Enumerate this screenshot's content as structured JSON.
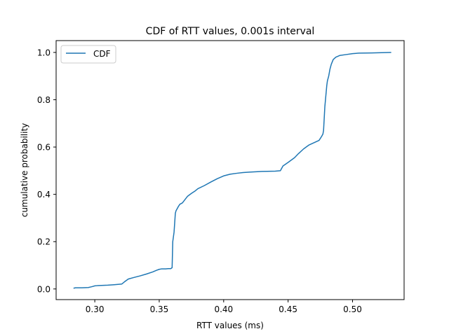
{
  "chart_data": {
    "type": "line",
    "title": "CDF of RTT values, 0.001s interval",
    "xlabel": "RTT values (ms)",
    "ylabel": "cumulative probability",
    "xlim": [
      0.27,
      0.54
    ],
    "ylim": [
      -0.045,
      1.05
    ],
    "xticks": [
      {
        "value": 0.3,
        "label": "0.30"
      },
      {
        "value": 0.35,
        "label": "0.35"
      },
      {
        "value": 0.4,
        "label": "0.40"
      },
      {
        "value": 0.45,
        "label": "0.45"
      },
      {
        "value": 0.5,
        "label": "0.50"
      }
    ],
    "yticks": [
      {
        "value": 0.0,
        "label": "0.0"
      },
      {
        "value": 0.2,
        "label": "0.2"
      },
      {
        "value": 0.4,
        "label": "0.4"
      },
      {
        "value": 0.6,
        "label": "0.6"
      },
      {
        "value": 0.8,
        "label": "0.8"
      },
      {
        "value": 1.0,
        "label": "1.0"
      }
    ],
    "grid": false,
    "legend": {
      "placement": "top-left"
    },
    "series": [
      {
        "name": "CDF",
        "color": "#1f77b4",
        "x": [
          0.2835,
          0.285,
          0.29,
          0.295,
          0.298,
          0.3,
          0.302,
          0.31,
          0.315,
          0.321,
          0.323,
          0.326,
          0.33,
          0.335,
          0.34,
          0.345,
          0.348,
          0.35,
          0.352,
          0.355,
          0.357,
          0.359,
          0.36,
          0.3605,
          0.3615,
          0.362,
          0.3625,
          0.363,
          0.364,
          0.365,
          0.366,
          0.368,
          0.37,
          0.372,
          0.375,
          0.378,
          0.38,
          0.385,
          0.39,
          0.395,
          0.4,
          0.405,
          0.41,
          0.415,
          0.42,
          0.43,
          0.44,
          0.444,
          0.446,
          0.45,
          0.455,
          0.458,
          0.462,
          0.466,
          0.47,
          0.474,
          0.476,
          0.477,
          0.4775,
          0.4785,
          0.479,
          0.48,
          0.4805,
          0.4815,
          0.4825,
          0.4835,
          0.485,
          0.487,
          0.49,
          0.495,
          0.5,
          0.505,
          0.515,
          0.53
        ],
        "y": [
          0.003,
          0.005,
          0.005,
          0.006,
          0.01,
          0.013,
          0.014,
          0.016,
          0.018,
          0.021,
          0.03,
          0.042,
          0.048,
          0.055,
          0.063,
          0.072,
          0.079,
          0.083,
          0.085,
          0.085,
          0.086,
          0.086,
          0.09,
          0.2,
          0.24,
          0.28,
          0.32,
          0.33,
          0.34,
          0.35,
          0.358,
          0.364,
          0.378,
          0.392,
          0.404,
          0.415,
          0.424,
          0.437,
          0.452,
          0.466,
          0.478,
          0.485,
          0.489,
          0.492,
          0.494,
          0.497,
          0.498,
          0.5,
          0.52,
          0.535,
          0.555,
          0.572,
          0.592,
          0.608,
          0.618,
          0.628,
          0.645,
          0.655,
          0.67,
          0.77,
          0.8,
          0.86,
          0.88,
          0.9,
          0.93,
          0.95,
          0.97,
          0.98,
          0.987,
          0.991,
          0.995,
          0.997,
          0.998,
          1.0
        ]
      }
    ]
  }
}
